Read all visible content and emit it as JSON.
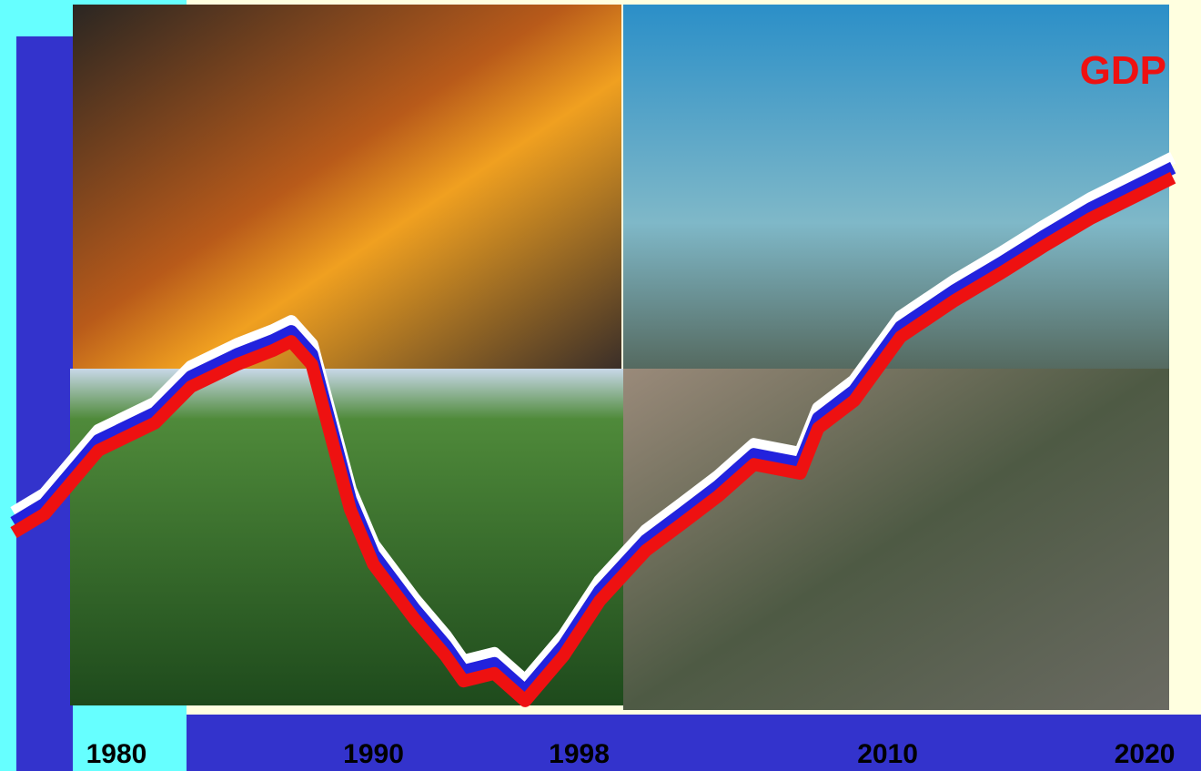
{
  "chart_data": {
    "type": "line",
    "x": [
      1976.0,
      1977.2,
      1979.3,
      1981.5,
      1982.9,
      1984.7,
      1986.1,
      1986.8,
      1987.6,
      1989.1,
      1990.0,
      1991.6,
      1992.8,
      1993.5,
      1994.7,
      1995.9,
      1997.4,
      1998.8,
      2000.6,
      2002.0,
      2003.4,
      2004.8,
      2006.6,
      2007.3,
      2008.7,
      2010.5,
      2012.6,
      2014.4,
      2016.1,
      2017.9,
      2019.7,
      2021.1
    ],
    "series": [
      {
        "name": "GDP",
        "color": "#ee1111",
        "stripe_colors": [
          "#ffffff",
          "#2222dd",
          "#ee1111"
        ],
        "values": [
          30.7,
          33.6,
          43.6,
          47.9,
          53.6,
          57.1,
          59.3,
          60.7,
          57.1,
          34.3,
          25.7,
          17.1,
          11.4,
          7.4,
          8.6,
          4.3,
          11.4,
          20.0,
          27.9,
          32.1,
          36.4,
          41.4,
          40.0,
          47.1,
          51.4,
          61.4,
          67.1,
          71.4,
          75.7,
          80.0,
          83.6,
          86.4
        ]
      }
    ],
    "xlim": [
      1976,
      2021.2
    ],
    "xticks": [
      1980,
      1990,
      1998,
      2010,
      2020
    ],
    "ylim": [
      0,
      100
    ]
  }
}
